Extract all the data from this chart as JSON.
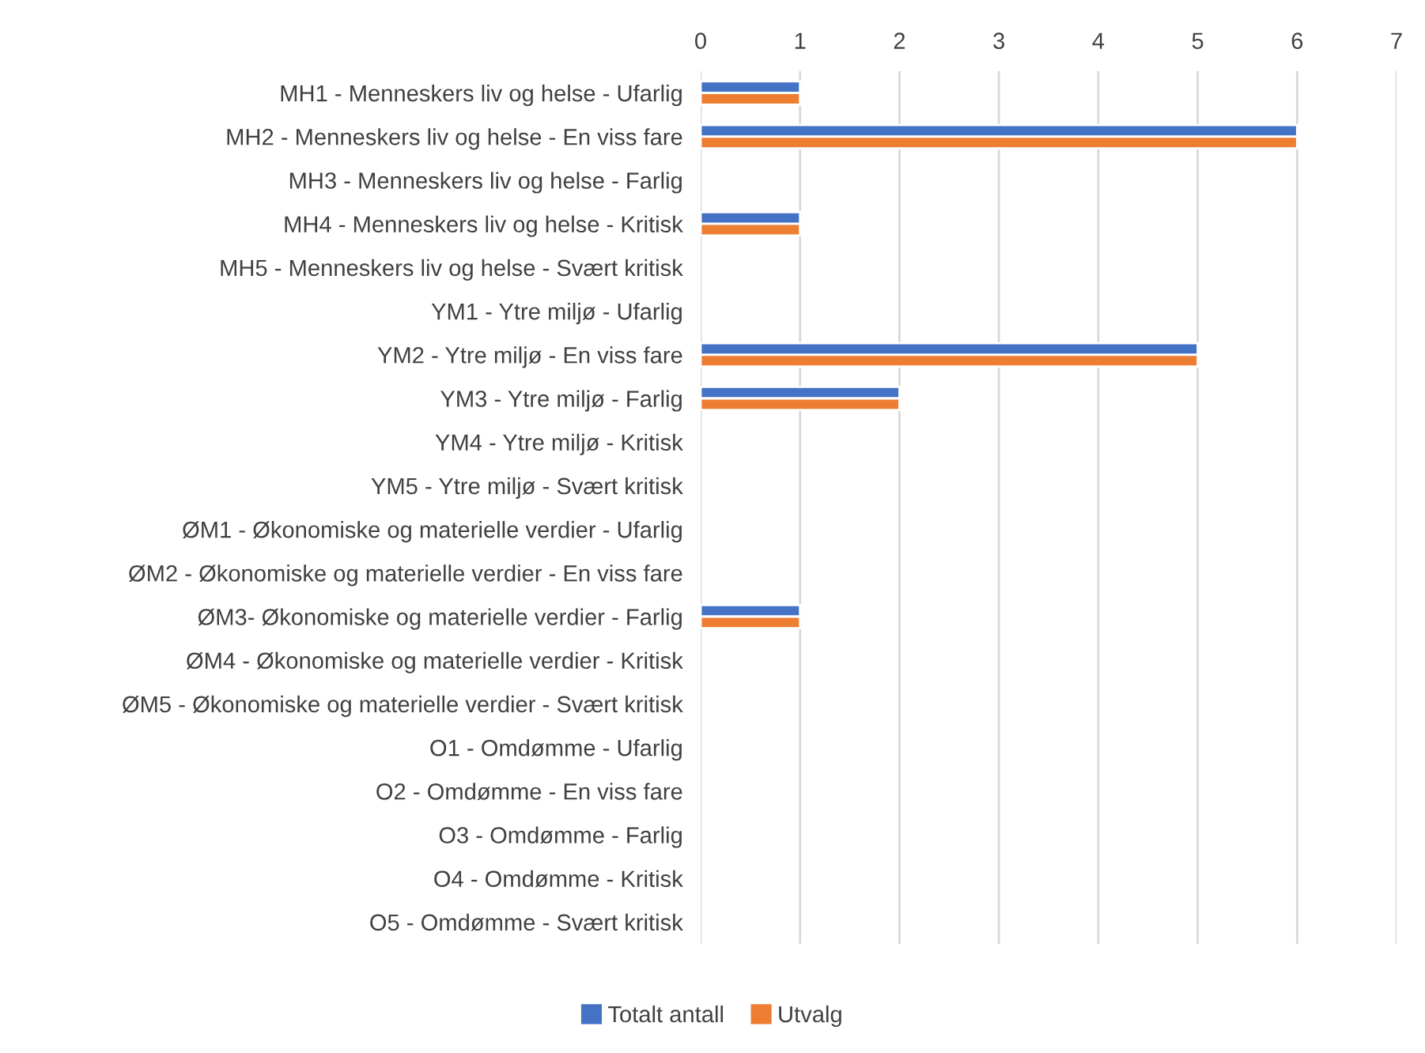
{
  "chart_data": {
    "type": "bar",
    "orientation": "horizontal",
    "categories": [
      "MH1 - Menneskers liv og helse - Ufarlig",
      "MH2 - Menneskers liv og helse - En viss fare",
      "MH3 - Menneskers liv og helse - Farlig",
      "MH4 - Menneskers liv og helse - Kritisk",
      "MH5 - Menneskers liv og helse - Svært kritisk",
      "YM1 - Ytre miljø - Ufarlig",
      "YM2 - Ytre miljø - En viss fare",
      "YM3 - Ytre miljø - Farlig",
      "YM4 - Ytre miljø - Kritisk",
      "YM5 - Ytre miljø - Svært kritisk",
      "ØM1 - Økonomiske og materielle verdier - Ufarlig",
      "ØM2 - Økonomiske og materielle verdier - En viss fare",
      "ØM3- Økonomiske og materielle verdier - Farlig",
      "ØM4 - Økonomiske og materielle verdier - Kritisk",
      "ØM5 - Økonomiske og materielle verdier - Svært kritisk",
      "O1 - Omdømme - Ufarlig",
      "O2 - Omdømme - En viss fare",
      "O3 - Omdømme - Farlig",
      "O4 - Omdømme - Kritisk",
      "O5 - Omdømme - Svært kritisk"
    ],
    "series": [
      {
        "name": "Totalt antall",
        "color": "#4472c4",
        "values": [
          1,
          6,
          null,
          1,
          null,
          null,
          5,
          2,
          null,
          null,
          null,
          null,
          1,
          null,
          null,
          null,
          null,
          null,
          null,
          null
        ]
      },
      {
        "name": "Utvalg",
        "color": "#ed7d31",
        "values": [
          1,
          6,
          null,
          1,
          null,
          null,
          5,
          2,
          null,
          null,
          null,
          null,
          1,
          null,
          null,
          null,
          null,
          null,
          null,
          null
        ]
      }
    ],
    "xlim": [
      0,
      7
    ],
    "xticks": [
      0,
      1,
      2,
      3,
      4,
      5,
      6,
      7
    ],
    "grid": "x",
    "legend": "bottom"
  }
}
